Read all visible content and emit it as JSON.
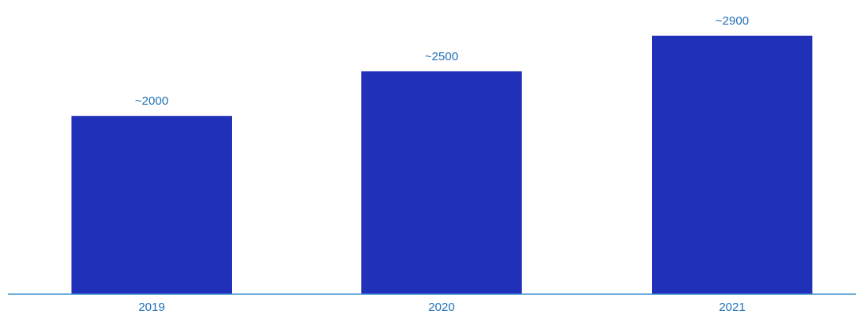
{
  "chart_data": {
    "type": "bar",
    "categories": [
      "2019",
      "2020",
      "2021"
    ],
    "values": [
      2000,
      2500,
      2900
    ],
    "data_labels": [
      "~2000",
      "~2500",
      "~2900"
    ],
    "title": "",
    "xlabel": "",
    "ylabel": "",
    "ylim": [
      0,
      2900
    ],
    "grid": false,
    "legend": "none",
    "colors": {
      "bar": "#2030b8",
      "axis": "#3a8fd0",
      "label": "#1f6fb5"
    }
  }
}
